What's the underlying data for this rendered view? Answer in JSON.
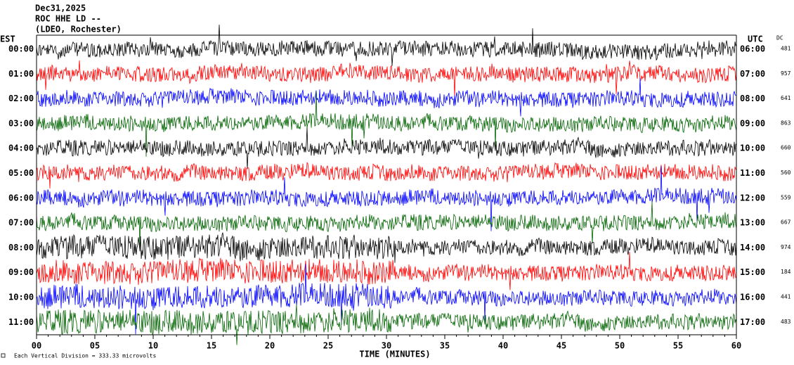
{
  "header": {
    "lines": [
      "Dec31,2025",
      "ROC HHE LD --",
      "(LDEO, Rochester)"
    ]
  },
  "left_axis": {
    "title": "EST",
    "labels": [
      "00:00",
      "01:00",
      "02:00",
      "03:00",
      "04:00",
      "05:00",
      "06:00",
      "07:00",
      "08:00",
      "09:00",
      "10:00",
      "11:00"
    ]
  },
  "right_axis": {
    "title": "UTC",
    "labels": [
      "06:00",
      "07:00",
      "08:00",
      "09:00",
      "10:00",
      "11:00",
      "12:00",
      "13:00",
      "14:00",
      "15:00",
      "16:00",
      "17:00"
    ]
  },
  "dc": {
    "title": "DC",
    "values": [
      481,
      957,
      641,
      863,
      660,
      560,
      559,
      667,
      974,
      184,
      441,
      483
    ]
  },
  "x_axis": {
    "title": "TIME (MINUTES)",
    "xlim": [
      0,
      60
    ],
    "ticks": [
      {
        "value": 0,
        "label": "00"
      },
      {
        "value": 5,
        "label": "05"
      },
      10,
      15,
      20,
      25,
      30,
      35,
      40,
      45,
      50,
      55,
      60
    ]
  },
  "footer": {
    "text": "Each Vertical Division =  333.33 microvolts"
  },
  "trace_colors": [
    "#000000",
    "#ff0000",
    "#0000ff",
    "#006400"
  ]
}
